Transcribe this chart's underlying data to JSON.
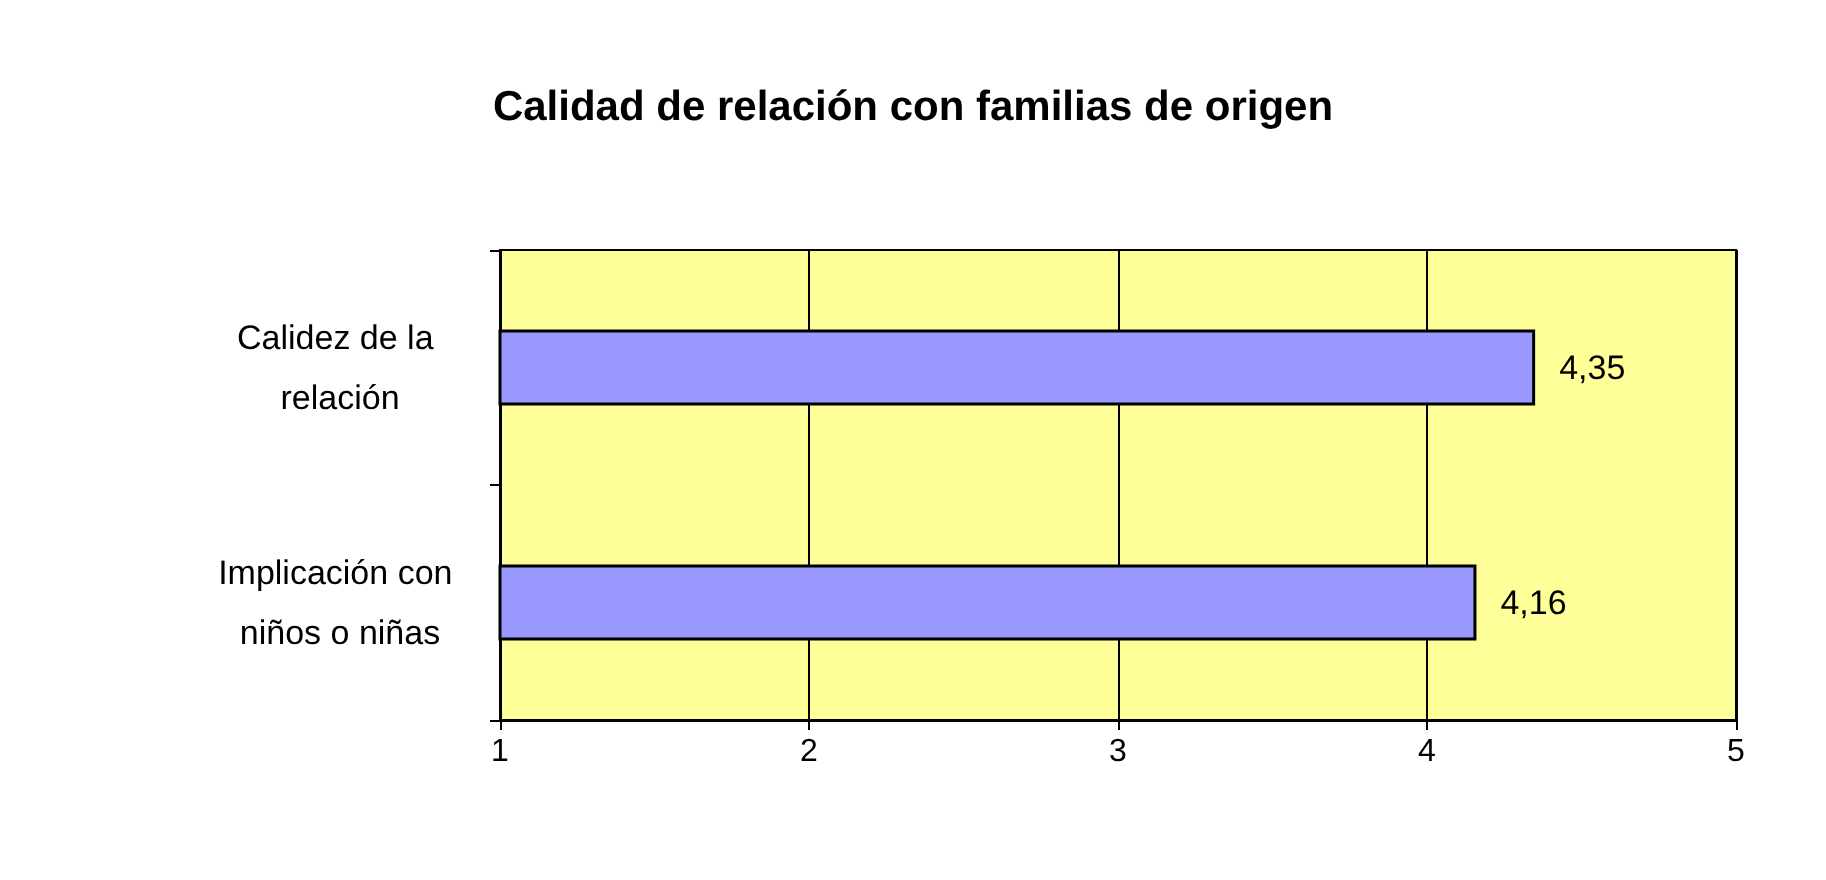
{
  "chart_data": {
    "type": "bar",
    "orientation": "horizontal",
    "title": "Calidad de relación con familias de origen",
    "categories": [
      "Calidez de la relación",
      "Implicación con niños o niñas"
    ],
    "values": [
      4.35,
      4.16
    ],
    "color": "#9999ff",
    "value_labels": [
      "4,35",
      "4,16"
    ],
    "xlim": [
      1,
      5
    ],
    "xticks": [
      1,
      2,
      3,
      4,
      5
    ],
    "grid": "x"
  }
}
